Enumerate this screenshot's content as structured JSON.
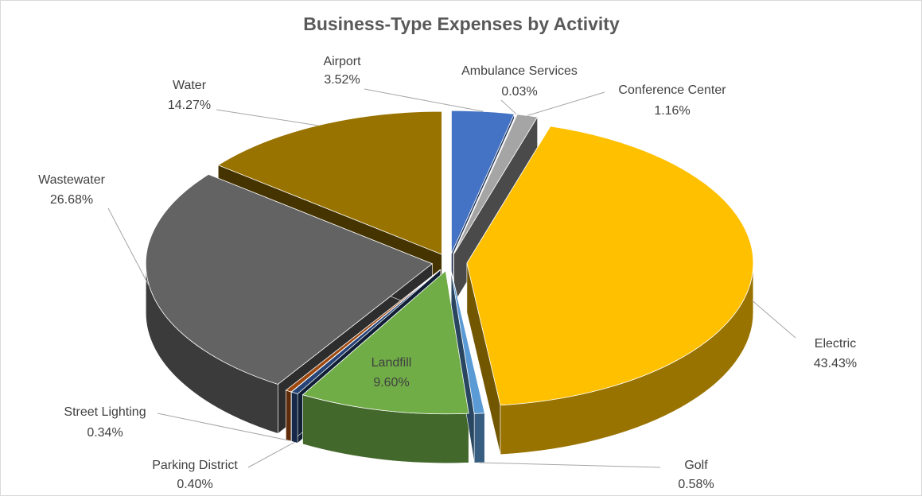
{
  "chart_data": {
    "type": "pie",
    "title": "Business-Type Expenses by Activity",
    "categories": [
      "Airport",
      "Ambulance Services",
      "Conference Center",
      "Electric",
      "Golf",
      "Landfill",
      "Parking District",
      "Street Lighting",
      "Wastewater",
      "Water"
    ],
    "values": [
      3.52,
      0.03,
      1.16,
      43.43,
      0.58,
      9.6,
      0.4,
      0.34,
      26.68,
      14.27
    ],
    "value_labels": [
      "3.52%",
      "0.03%",
      "1.16%",
      "43.43%",
      "0.58%",
      "9.60%",
      "0.40%",
      "0.34%",
      "26.68%",
      "14.27%"
    ],
    "colors": [
      "#4472c4",
      "#ed7d31",
      "#a5a5a5",
      "#ffc000",
      "#5b9bd5",
      "#70ad47",
      "#264478",
      "#9e480e",
      "#636363",
      "#997300"
    ]
  }
}
